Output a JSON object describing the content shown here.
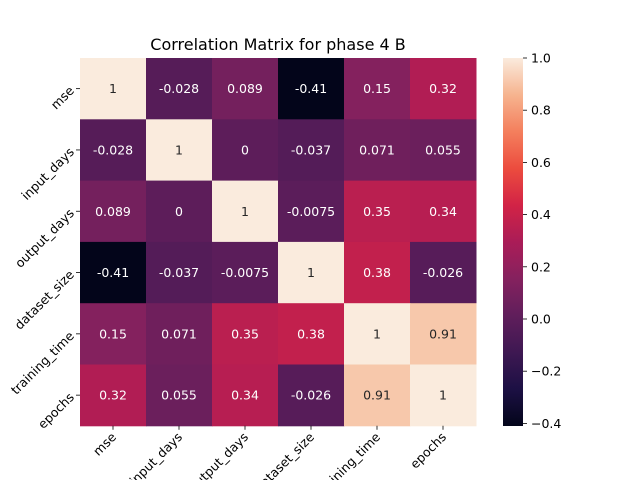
{
  "chart_data": {
    "type": "heatmap",
    "title": "Correlation Matrix for phase 4 B",
    "xlabel": "",
    "ylabel": "",
    "variables": [
      "mse",
      "input_days",
      "output_days",
      "dataset_size",
      "training_time",
      "epochs"
    ],
    "values": [
      [
        1,
        -0.028,
        0.089,
        -0.41,
        0.15,
        0.32
      ],
      [
        -0.028,
        1,
        0,
        -0.037,
        0.071,
        0.055
      ],
      [
        0.089,
        0,
        1,
        -0.0075,
        0.35,
        0.34
      ],
      [
        -0.41,
        -0.037,
        -0.0075,
        1,
        0.38,
        -0.026
      ],
      [
        0.15,
        0.071,
        0.35,
        0.38,
        1,
        0.91
      ],
      [
        0.32,
        0.055,
        0.34,
        -0.026,
        0.91,
        1
      ]
    ],
    "labels": [
      [
        "1",
        "-0.028",
        "0.089",
        "-0.41",
        "0.15",
        "0.32"
      ],
      [
        "-0.028",
        "1",
        "0",
        "-0.037",
        "0.071",
        "0.055"
      ],
      [
        "0.089",
        "0",
        "1",
        "-0.0075",
        "0.35",
        "0.34"
      ],
      [
        "-0.41",
        "-0.037",
        "-0.0075",
        "1",
        "0.38",
        "-0.026"
      ],
      [
        "0.15",
        "0.071",
        "0.35",
        "0.38",
        "1",
        "0.91"
      ],
      [
        "0.32",
        "0.055",
        "0.34",
        "-0.026",
        "0.91",
        "1"
      ]
    ],
    "colorbar": {
      "vmin": -0.41,
      "vmax": 1.0,
      "ticks": [
        -0.4,
        -0.2,
        0.0,
        0.2,
        0.4,
        0.6,
        0.8,
        1.0
      ],
      "tick_labels": [
        "−0.4",
        "−0.2",
        "0.0",
        "0.2",
        "0.4",
        "0.6",
        "0.8",
        "1.0"
      ],
      "colormap": "rocket"
    },
    "grid": false
  }
}
